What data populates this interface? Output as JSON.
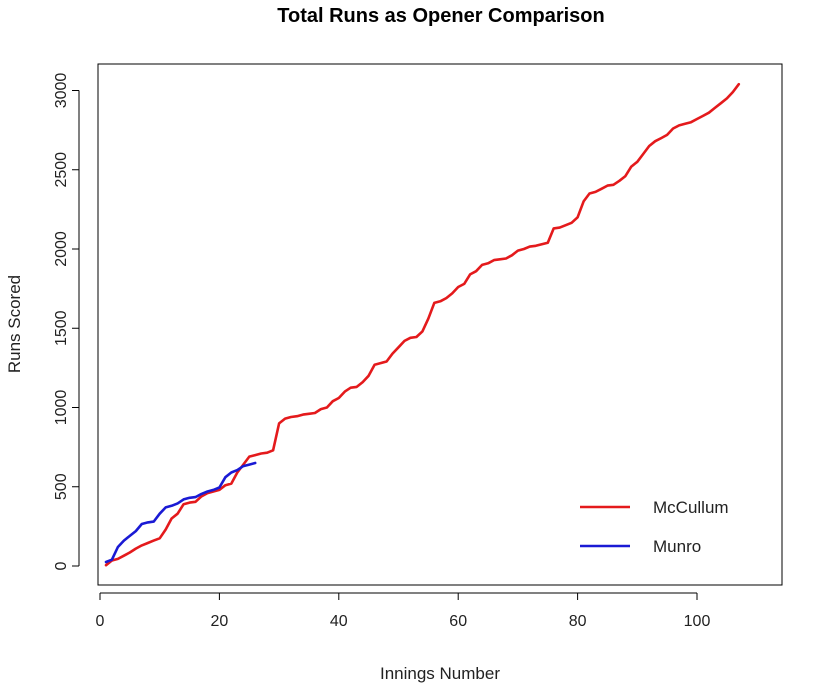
{
  "chart_data": {
    "type": "line",
    "title": "Total Runs as Opener Comparison",
    "xlabel": "Innings Number",
    "ylabel": "Runs Scored",
    "xlim": [
      0,
      110
    ],
    "ylim": [
      0,
      3100
    ],
    "x_ticks": [
      0,
      20,
      40,
      60,
      80,
      100
    ],
    "y_ticks": [
      0,
      500,
      1000,
      1500,
      2000,
      2500,
      3000
    ],
    "x_tick_labels": [
      "0",
      "20",
      "40",
      "60",
      "80",
      "100"
    ],
    "y_tick_labels": [
      "0",
      "500",
      "1000",
      "1500",
      "2000",
      "2500",
      "3000"
    ],
    "grid": false,
    "legend_position": "bottom-right",
    "series": [
      {
        "name": "McCullum",
        "color": "#e41a1c",
        "x": [
          1,
          2,
          3,
          4,
          5,
          6,
          7,
          8,
          9,
          10,
          11,
          12,
          13,
          14,
          15,
          16,
          17,
          18,
          19,
          20,
          21,
          22,
          23,
          24,
          25,
          26,
          27,
          28,
          29,
          30,
          31,
          32,
          33,
          34,
          35,
          36,
          37,
          38,
          39,
          40,
          41,
          42,
          43,
          44,
          45,
          46,
          47,
          48,
          49,
          50,
          51,
          52,
          53,
          54,
          55,
          56,
          57,
          58,
          59,
          60,
          61,
          62,
          63,
          64,
          65,
          66,
          67,
          68,
          69,
          70,
          71,
          72,
          73,
          74,
          75,
          76,
          77,
          78,
          79,
          80,
          81,
          82,
          83,
          84,
          85,
          86,
          87,
          88,
          89,
          90,
          91,
          92,
          93,
          94,
          95,
          96,
          97,
          98,
          99,
          100,
          101,
          102,
          103,
          104,
          105,
          106,
          107
        ],
        "values": [
          5,
          35,
          45,
          65,
          85,
          110,
          130,
          145,
          160,
          175,
          230,
          300,
          330,
          390,
          400,
          405,
          440,
          460,
          470,
          480,
          510,
          520,
          590,
          640,
          690,
          700,
          710,
          715,
          730,
          900,
          930,
          940,
          945,
          955,
          960,
          965,
          990,
          1000,
          1040,
          1060,
          1100,
          1125,
          1130,
          1160,
          1200,
          1270,
          1280,
          1290,
          1340,
          1380,
          1420,
          1440,
          1445,
          1480,
          1560,
          1660,
          1670,
          1690,
          1720,
          1760,
          1780,
          1840,
          1860,
          1900,
          1910,
          1930,
          1935,
          1940,
          1960,
          1990,
          2000,
          2015,
          2020,
          2030,
          2040,
          2130,
          2135,
          2150,
          2165,
          2200,
          2300,
          2350,
          2360,
          2380,
          2400,
          2405,
          2430,
          2460,
          2520,
          2550,
          2600,
          2650,
          2680,
          2700,
          2720,
          2760,
          2780,
          2790,
          2800,
          2820,
          2840,
          2860,
          2890,
          2920,
          2950,
          2990,
          3040
        ]
      },
      {
        "name": "Munro",
        "color": "#1a1ad4",
        "x": [
          1,
          2,
          3,
          4,
          5,
          6,
          7,
          8,
          9,
          10,
          11,
          12,
          13,
          14,
          15,
          16,
          17,
          18,
          19,
          20,
          21,
          22,
          23,
          24,
          25,
          26
        ],
        "values": [
          25,
          40,
          120,
          160,
          190,
          220,
          265,
          275,
          280,
          330,
          370,
          380,
          395,
          420,
          430,
          435,
          455,
          470,
          480,
          495,
          560,
          590,
          605,
          630,
          640,
          650
        ]
      }
    ]
  }
}
